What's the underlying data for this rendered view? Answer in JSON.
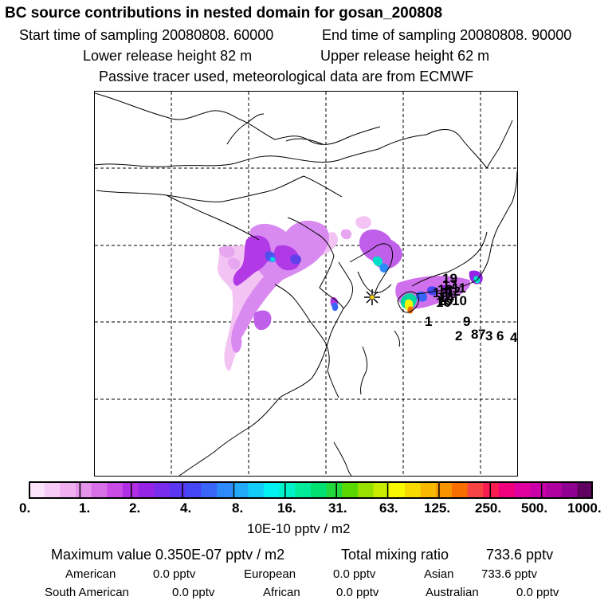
{
  "header": {
    "title": "BC  source contributions in nested domain for gosan_200808",
    "start_time": "Start time of sampling 20080808. 60000",
    "end_time": "End time of sampling 20080808. 90000",
    "lower_height": "Lower release height   82 m",
    "upper_height": "Upper release height   62 m",
    "tracer_note": "Passive tracer used, meteorological data are from ECMWF"
  },
  "colorbar": {
    "colors": [
      "#fbe4fb",
      "#f6ccf6",
      "#f0b0f0",
      "#e693ec",
      "#d76fe6",
      "#c94ce6",
      "#b22ee6",
      "#9624e6",
      "#7a2cec",
      "#5c36f0",
      "#4646f4",
      "#3a66f8",
      "#2e8af8",
      "#22aaf8",
      "#14ccf8",
      "#00f2f2",
      "#00f2c8",
      "#00ec9a",
      "#00e070",
      "#22d83c",
      "#5ad800",
      "#98e000",
      "#c8ec00",
      "#f8f800",
      "#f8da00",
      "#f8b800",
      "#f89400",
      "#f86e00",
      "#f84444",
      "#f81c50",
      "#f0007c",
      "#e000a0",
      "#cc00a8",
      "#b000a0",
      "#900090",
      "#600060"
    ],
    "ticks": [
      "0.",
      "1.",
      "2.",
      "4.",
      "8.",
      "16.",
      "31.",
      "63.",
      "125.",
      "250.",
      "500.",
      "1000."
    ],
    "units": "10E-10 pptv / m2"
  },
  "summary": {
    "max_value": "Maximum value  0.350E-07 pptv / m2",
    "total_label": "Total mixing ratio",
    "total_value": "733.6 pptv"
  },
  "regions": [
    {
      "name": "American",
      "value": "0.0 pptv"
    },
    {
      "name": "European",
      "value": "0.0 pptv"
    },
    {
      "name": "Asian",
      "value": "733.6 pptv"
    },
    {
      "name": "South American",
      "value": "0.0 pptv"
    },
    {
      "name": "African",
      "value": "0.0 pptv"
    },
    {
      "name": "Australian",
      "value": "0.0 pptv"
    }
  ],
  "map": {
    "receptor_marker": "gosan-receptor",
    "source_labels": [
      "1",
      "2",
      "9",
      "8",
      "7",
      "3",
      "6",
      "4",
      "10",
      "15",
      "11",
      "12",
      "13",
      "14",
      "16",
      "17",
      "18",
      "19"
    ]
  }
}
